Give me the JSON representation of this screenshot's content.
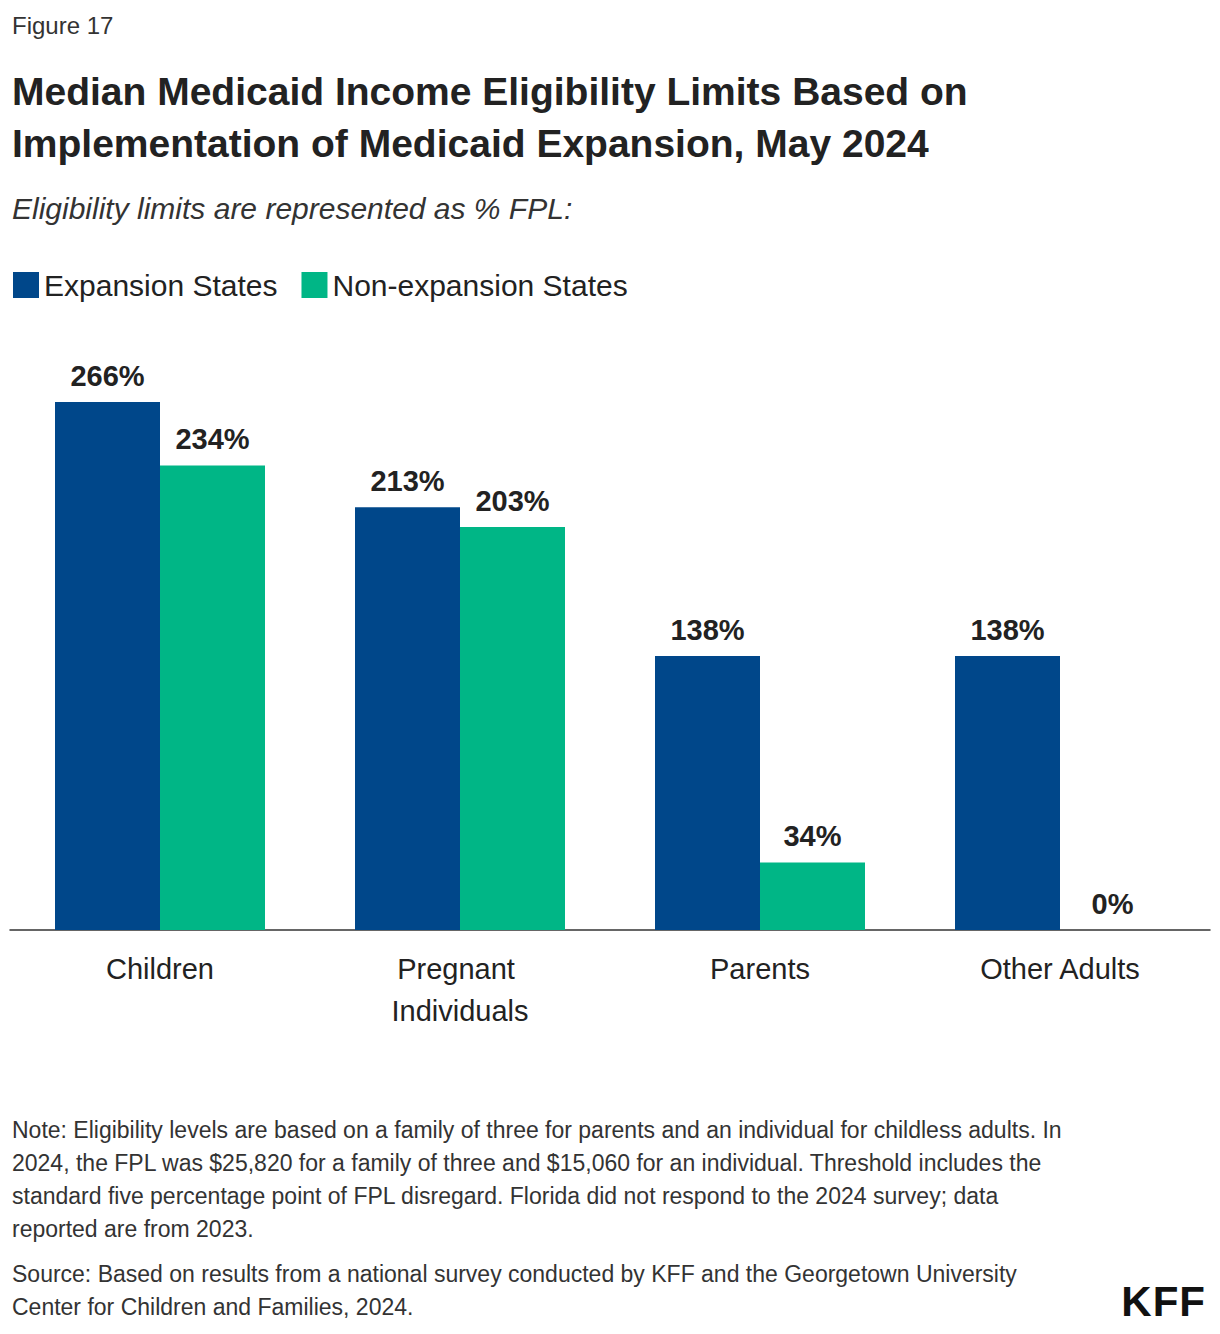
{
  "chart_data": {
    "type": "bar",
    "figure_label": "Figure 17",
    "title": "Median Medicaid Income Eligibility Limits Based on Implementation of Medicaid Expansion, May 2024",
    "subtitle": "Eligibility limits are represented as % FPL:",
    "categories": [
      "Children",
      "Pregnant Individuals",
      "Parents",
      "Other Adults"
    ],
    "series": [
      {
        "name": "Expansion States",
        "color": "#00478a",
        "values": [
          266,
          213,
          138,
          138
        ],
        "value_labels": [
          "266%",
          "213%",
          "138%",
          "138%"
        ]
      },
      {
        "name": "Non-expansion States",
        "color": "#00b686",
        "values": [
          234,
          203,
          34,
          0
        ],
        "value_labels": [
          "234%",
          "203%",
          "34%",
          "0%"
        ]
      }
    ],
    "ylim": [
      0,
      266
    ],
    "grid": false,
    "legend": "top-left",
    "data_labels": true,
    "tick_labels": "x",
    "note": "Note: Eligibility levels are based on a family of three for parents and an individual for childless adults. In 2024, the FPL was $25,820 for a family of three and $15,060 for an individual. Threshold includes the standard five percentage point of FPL disregard. Florida did not respond to the 2024 survey; data reported are from 2023.",
    "source": "Source: Based on results from a national survey conducted by KFF and the Georgetown University Center for Children and Families, 2024.",
    "logo": "KFF"
  }
}
